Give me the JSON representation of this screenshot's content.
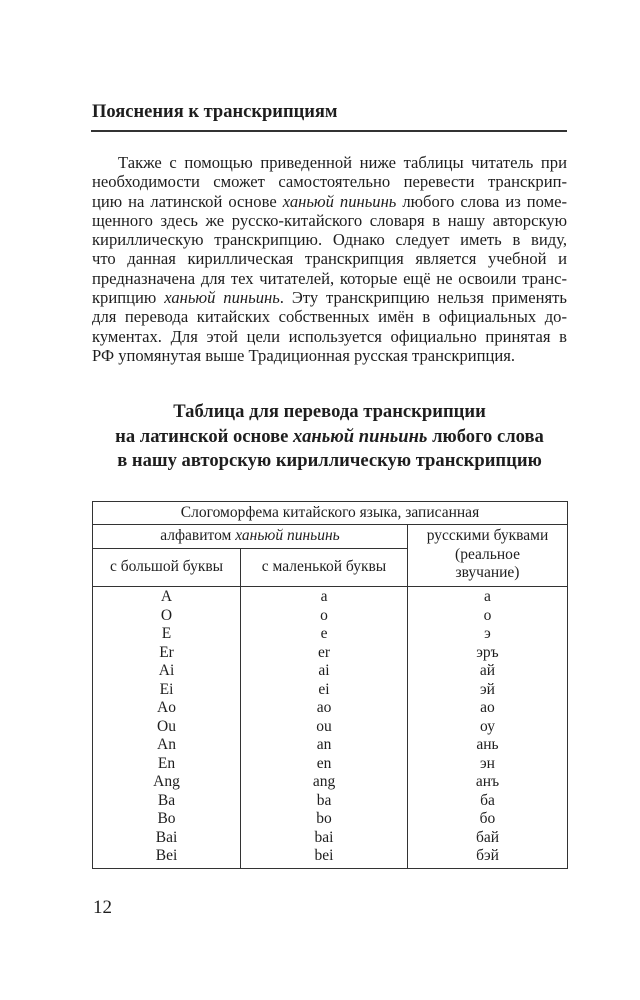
{
  "running_head": "Пояснения к транскрипциям",
  "paragraph_lines": [
    [
      {
        "t": "Также с помощью приведенной ниже таблицы читатель при"
      }
    ],
    [
      {
        "t": "необходимости сможет самостоятельно перевести транскрип-"
      }
    ],
    [
      {
        "t": "цию на латинской основе "
      },
      {
        "t": "ханьюй пиньинь",
        "i": true
      },
      {
        "t": " любого слова из поме-"
      }
    ],
    [
      {
        "t": "щенного здесь же русско-китайского словаря в нашу авторскую"
      }
    ],
    [
      {
        "t": "кириллическую транскрипцию. Однако следует иметь в виду,"
      }
    ],
    [
      {
        "t": "что данная кириллическая транскрипция является учебной и"
      }
    ],
    [
      {
        "t": "предназначена для тех читателей, которые ещё не освоили транс-"
      }
    ],
    [
      {
        "t": "крипцию "
      },
      {
        "t": "ханьюй пиньинь",
        "i": true
      },
      {
        "t": ". Эту транскрипцию нельзя применять"
      }
    ],
    [
      {
        "t": "для перевода китайских собственных имён в официальных до-"
      }
    ],
    [
      {
        "t": "кументах. Для этой цели используется официально принятая в"
      }
    ],
    [
      {
        "t": "РФ упомянутая выше Традиционная русская транскрипция."
      }
    ]
  ],
  "table_title_lines": [
    [
      {
        "t": "Таблица для перевода транскрипции"
      }
    ],
    [
      {
        "t": "на латинской основе "
      },
      {
        "t": "ханьюй пиньинь",
        "i": true
      },
      {
        "t": " любого слова"
      }
    ],
    [
      {
        "t": "в нашу авторскую кириллическую транскрипцию"
      }
    ]
  ],
  "table": {
    "header_top": "Слогоморфема китайского языка, записанная",
    "header_pinyin_prefix": "алфавитом ",
    "header_pinyin_italic": "ханьюй пиньинь",
    "header_russian": [
      "русскими буквами",
      "(реальное",
      "звучание)"
    ],
    "col_upper": "с большой буквы",
    "col_lower": "с маленькой буквы",
    "rows": [
      [
        "A",
        "a",
        "а"
      ],
      [
        "O",
        "o",
        "о"
      ],
      [
        "E",
        "e",
        "э"
      ],
      [
        "Er",
        "er",
        "эръ"
      ],
      [
        "Ai",
        "ai",
        "ай"
      ],
      [
        "Ei",
        "ei",
        "эй"
      ],
      [
        "Ao",
        "ao",
        "ао"
      ],
      [
        "Ou",
        "ou",
        "оу"
      ],
      [
        "An",
        "an",
        "ань"
      ],
      [
        "En",
        "en",
        "эн"
      ],
      [
        "Ang",
        "ang",
        "анъ"
      ],
      [
        "Ba",
        "ba",
        "ба"
      ],
      [
        "Bo",
        "bo",
        "бо"
      ],
      [
        "Bai",
        "bai",
        "бай"
      ],
      [
        "Bei",
        "bei",
        "бэй"
      ]
    ]
  },
  "page_number": "12"
}
